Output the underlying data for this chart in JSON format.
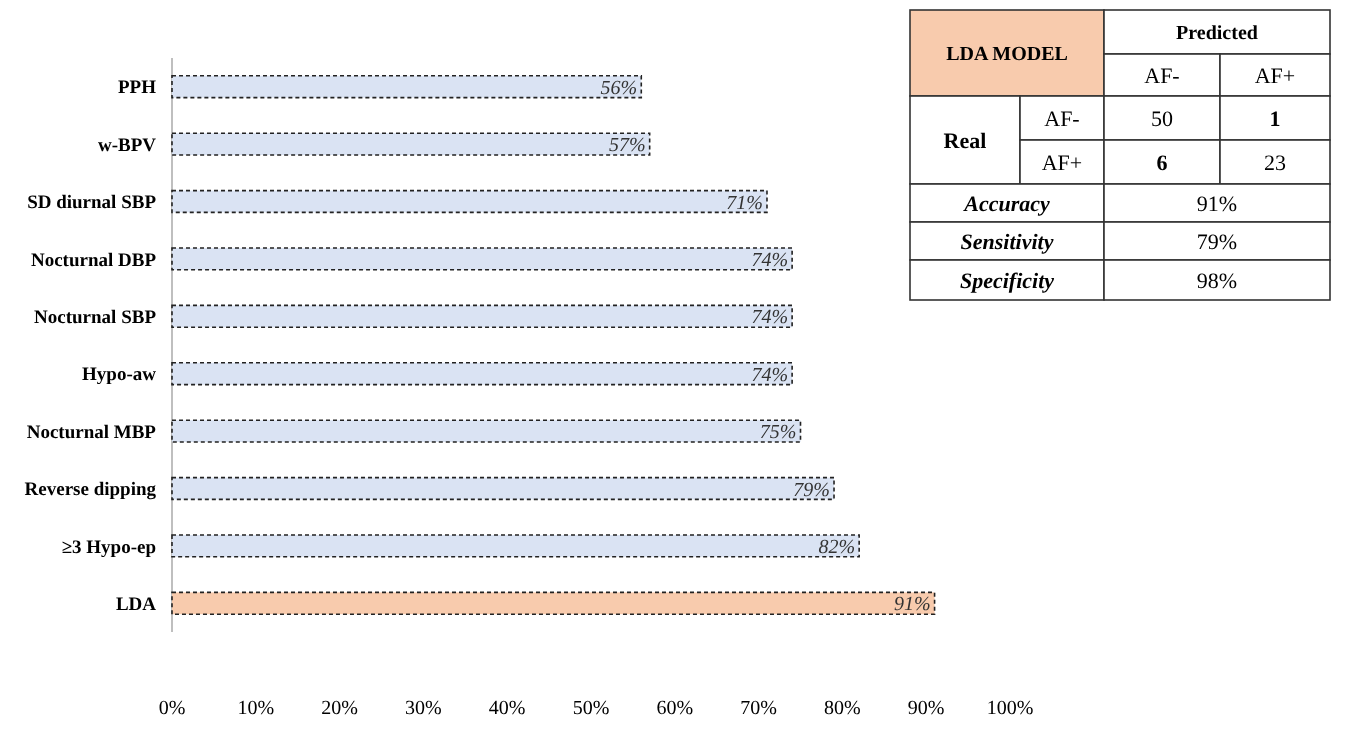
{
  "chart_data": [
    {
      "type": "bar",
      "orientation": "horizontal",
      "categories": [
        "PPH",
        "w-BPV",
        "SD diurnal SBP",
        "Nocturnal DBP",
        "Nocturnal SBP",
        "Hypo-aw",
        "Nocturnal MBP",
        "Reverse dipping",
        "≥3 Hypo-ep",
        "LDA"
      ],
      "values": [
        56,
        57,
        71,
        74,
        74,
        74,
        75,
        79,
        82,
        91
      ],
      "colors": [
        "#dae3f3",
        "#dae3f3",
        "#dae3f3",
        "#dae3f3",
        "#dae3f3",
        "#dae3f3",
        "#dae3f3",
        "#dae3f3",
        "#dae3f3",
        "#f8cbad"
      ],
      "value_labels": [
        "56%",
        "57%",
        "71%",
        "74%",
        "74%",
        "74%",
        "75%",
        "79%",
        "82%",
        "91%"
      ],
      "xlim": [
        0,
        100
      ],
      "xticks": [
        {
          "value": 0,
          "label": "0%"
        },
        {
          "value": 10,
          "label": "10%"
        },
        {
          "value": 20,
          "label": "20%"
        },
        {
          "value": 30,
          "label": "30%"
        },
        {
          "value": 40,
          "label": "40%"
        },
        {
          "value": 50,
          "label": "50%"
        },
        {
          "value": 60,
          "label": "60%"
        },
        {
          "value": 70,
          "label": "70%"
        },
        {
          "value": 80,
          "label": "80%"
        },
        {
          "value": 90,
          "label": "90%"
        },
        {
          "value": 100,
          "label": "100%"
        }
      ],
      "grid": false
    },
    {
      "type": "other",
      "annotations": [
        "LDA MODEL",
        "Predicted",
        "AF-",
        "AF+",
        "Real",
        "AF-",
        "50",
        "1",
        "AF+",
        "6",
        "23",
        "Accuracy",
        "91%",
        "Sensitivity",
        "79%",
        "Specificity",
        "98%"
      ]
    }
  ]
}
